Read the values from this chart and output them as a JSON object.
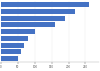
{
  "values": [
    260,
    220,
    190,
    160,
    100,
    80,
    68,
    58,
    50
  ],
  "bar_color": "#4472c4",
  "background_color": "#ffffff",
  "xlim": [
    0,
    290
  ],
  "xticks": [
    0,
    50,
    100,
    150,
    200,
    250
  ],
  "bar_height": 0.75,
  "grid_color": "#e8e8e8",
  "spine_color": "#aaaaaa"
}
